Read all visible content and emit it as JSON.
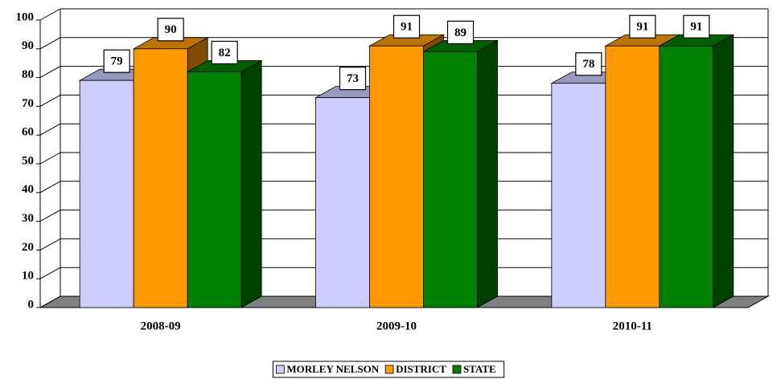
{
  "chart_data": {
    "type": "bar3d",
    "categories": [
      "2008-09",
      "2009-10",
      "2010-11"
    ],
    "series": [
      {
        "name": "MORLEY NELSON",
        "color": "#ccccff",
        "values": [
          79,
          73,
          78
        ]
      },
      {
        "name": "DISTRICT",
        "color": "#ff9900",
        "values": [
          90,
          91,
          91
        ]
      },
      {
        "name": "STATE",
        "color": "#008000",
        "values": [
          82,
          89,
          91
        ]
      }
    ],
    "ylim": [
      0,
      100
    ],
    "yticks": [
      0,
      10,
      20,
      30,
      40,
      50,
      60,
      70,
      80,
      90,
      100
    ],
    "grid": true,
    "legend": "bottom"
  }
}
